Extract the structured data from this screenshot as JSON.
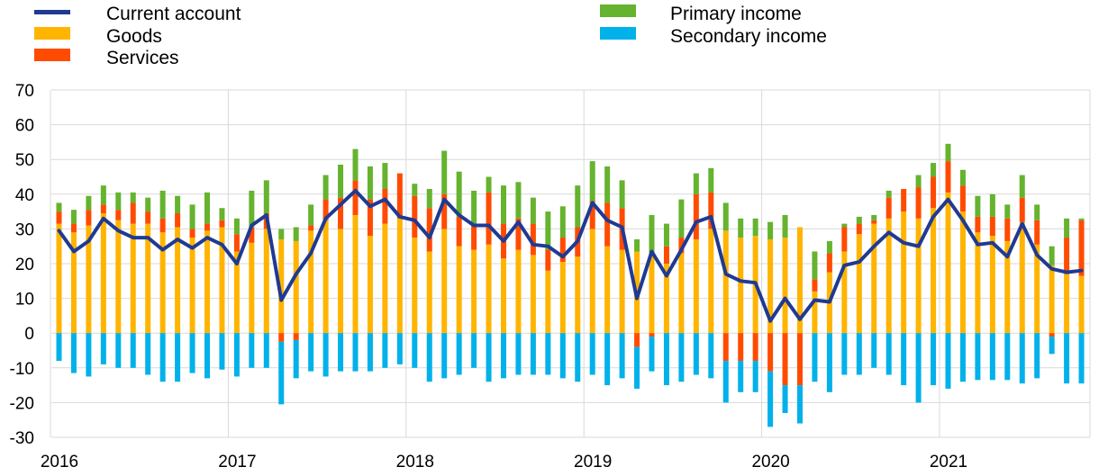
{
  "chart_data": {
    "type": "bar",
    "stacked": true,
    "title": "",
    "xlabel": "",
    "ylabel": "",
    "ylim": [
      -30,
      70
    ],
    "yticks": [
      -30,
      -20,
      -10,
      0,
      10,
      20,
      30,
      40,
      50,
      60,
      70
    ],
    "xticks": [
      "2016",
      "2017",
      "2018",
      "2019",
      "2020",
      "2021"
    ],
    "grid": "vertical at year starts, horizontal at y ticks",
    "legend_position": "top",
    "colors": {
      "Current account": "#1f3a93",
      "Goods": "#ffb400",
      "Services": "#ff4b00",
      "Primary income": "#65b32e",
      "Secondary income": "#00b1ea"
    },
    "legend": [
      {
        "name": "Current account",
        "kind": "line"
      },
      {
        "name": "Goods",
        "kind": "bar"
      },
      {
        "name": "Services",
        "kind": "bar"
      },
      {
        "name": "Primary income",
        "kind": "bar"
      },
      {
        "name": "Secondary income",
        "kind": "bar"
      }
    ],
    "categories": [
      "2016-01",
      "2016-02",
      "2016-03",
      "2016-04",
      "2016-05",
      "2016-06",
      "2016-07",
      "2016-08",
      "2016-09",
      "2016-10",
      "2016-11",
      "2016-12",
      "2017-01",
      "2017-02",
      "2017-03",
      "2017-04",
      "2017-05",
      "2017-06",
      "2017-07",
      "2017-08",
      "2017-09",
      "2017-10",
      "2017-11",
      "2017-12",
      "2018-01",
      "2018-02",
      "2018-03",
      "2018-04",
      "2018-05",
      "2018-06",
      "2018-07",
      "2018-08",
      "2018-09",
      "2018-10",
      "2018-11",
      "2018-12",
      "2019-01",
      "2019-02",
      "2019-03",
      "2019-04",
      "2019-05",
      "2019-06",
      "2019-07",
      "2019-08",
      "2019-09",
      "2019-10",
      "2019-11",
      "2019-12",
      "2020-01",
      "2020-02",
      "2020-03",
      "2020-04",
      "2020-05",
      "2020-06",
      "2020-07",
      "2020-08",
      "2020-09",
      "2020-10",
      "2020-11",
      "2020-12",
      "2021-01",
      "2021-02",
      "2021-03",
      "2021-04",
      "2021-05",
      "2021-06",
      "2021-07",
      "2021-08",
      "2021-09",
      "2021-10"
    ],
    "series": [
      {
        "name": "Goods",
        "type": "bar",
        "values": [
          31.5,
          29.0,
          31.0,
          34.5,
          32.5,
          31.5,
          31.5,
          29.0,
          30.5,
          27.5,
          29.5,
          30.5,
          23.5,
          26.0,
          30.0,
          27.0,
          26.5,
          29.5,
          32.5,
          30.0,
          34.0,
          28.0,
          31.5,
          33.0,
          27.5,
          23.5,
          30.0,
          25.0,
          24.0,
          25.5,
          21.5,
          24.0,
          22.5,
          18.0,
          20.5,
          22.0,
          30.0,
          25.0,
          24.0,
          23.5,
          22.5,
          20.0,
          23.0,
          27.0,
          30.0,
          29.5,
          27.5,
          28.0,
          27.0,
          27.5,
          30.5,
          12.0,
          17.5,
          23.5,
          28.5,
          31.5,
          33.0,
          35.0,
          33.0,
          36.0,
          40.5,
          35.0,
          29.0,
          28.0,
          26.5,
          32.0,
          25.5,
          19.5,
          17.0,
          16.5
        ]
      },
      {
        "name": "Services",
        "type": "bar",
        "values": [
          3.5,
          2.5,
          4.5,
          2.5,
          3.0,
          6.0,
          3.5,
          4.0,
          4.0,
          2.5,
          2.0,
          2.0,
          5.0,
          4.5,
          4.5,
          -2.5,
          -2.0,
          1.5,
          6.0,
          9.0,
          10.0,
          10.5,
          10.0,
          13.0,
          12.0,
          12.5,
          10.0,
          8.5,
          7.0,
          15.0,
          10.0,
          9.0,
          9.0,
          6.0,
          7.0,
          8.5,
          8.0,
          12.5,
          12.0,
          -4.0,
          -1.0,
          5.0,
          4.5,
          13.0,
          10.5,
          -8.0,
          -8.0,
          -8.0,
          -11.0,
          -15.0,
          -15.0,
          3.5,
          5.5,
          7.0,
          3.0,
          1.0,
          6.0,
          6.5,
          9.0,
          9.0,
          9.0,
          7.5,
          4.5,
          5.5,
          6.5,
          7.0,
          7.0,
          -1.0,
          10.5,
          16.0
        ]
      },
      {
        "name": "Primary income",
        "type": "bar",
        "values": [
          2.5,
          4.0,
          4.0,
          5.5,
          5.0,
          3.0,
          4.0,
          8.0,
          5.0,
          7.0,
          9.0,
          3.5,
          4.5,
          10.5,
          9.5,
          3.0,
          4.0,
          6.0,
          7.0,
          9.5,
          9.0,
          9.5,
          7.5,
          0.0,
          3.5,
          5.5,
          12.5,
          13.0,
          10.0,
          4.5,
          11.0,
          10.5,
          7.5,
          11.0,
          9.0,
          12.0,
          11.5,
          10.5,
          8.0,
          3.5,
          11.5,
          6.5,
          11.0,
          6.0,
          7.0,
          8.0,
          5.5,
          5.0,
          5.0,
          6.5,
          0.0,
          8.0,
          3.5,
          1.0,
          2.0,
          1.5,
          2.0,
          0.0,
          3.5,
          4.0,
          5.0,
          4.5,
          6.0,
          6.5,
          4.0,
          6.5,
          4.5,
          5.5,
          5.5,
          0.5
        ]
      },
      {
        "name": "Secondary income",
        "type": "bar",
        "values": [
          -8.0,
          -11.5,
          -12.5,
          -9.0,
          -10.0,
          -10.0,
          -12.0,
          -14.0,
          -14.0,
          -11.5,
          -13.0,
          -10.5,
          -12.5,
          -10.0,
          -10.0,
          -18.0,
          -11.0,
          -11.0,
          -12.5,
          -11.0,
          -11.0,
          -11.0,
          -10.0,
          -9.0,
          -10.0,
          -14.0,
          -13.0,
          -12.0,
          -10.0,
          -14.0,
          -13.0,
          -12.0,
          -12.0,
          -12.0,
          -13.0,
          -14.0,
          -12.0,
          -15.0,
          -13.0,
          -12.0,
          -10.0,
          -15.0,
          -14.0,
          -12.0,
          -13.0,
          -12.0,
          -9.0,
          -9.0,
          -16.0,
          -8.0,
          -11.0,
          -14.0,
          -17.0,
          -12.0,
          -12.0,
          -10.0,
          -12.0,
          -15.0,
          -20.0,
          -15.0,
          -16.0,
          -14.0,
          -13.5,
          -13.5,
          -13.5,
          -14.5,
          -13.0,
          -5.0,
          -14.5,
          -14.5
        ]
      },
      {
        "name": "Current account",
        "type": "line",
        "values": [
          29.5,
          23.5,
          26.5,
          33.0,
          29.5,
          27.5,
          27.5,
          24.0,
          27.0,
          24.5,
          27.5,
          25.5,
          20.0,
          31.0,
          34.0,
          9.5,
          17.0,
          23.0,
          33.0,
          37.0,
          41.0,
          36.5,
          38.5,
          33.5,
          32.5,
          27.5,
          38.5,
          34.0,
          31.0,
          31.0,
          26.5,
          32.0,
          25.5,
          25.0,
          22.0,
          26.5,
          37.5,
          32.5,
          30.5,
          10.0,
          23.5,
          16.5,
          24.0,
          32.0,
          33.5,
          17.0,
          15.0,
          14.5,
          3.5,
          10.0,
          4.0,
          9.5,
          9.0,
          19.5,
          20.5,
          25.0,
          29.0,
          26.0,
          25.0,
          33.5,
          38.5,
          32.5,
          25.5,
          26.0,
          22.0,
          31.5,
          22.5,
          18.5,
          17.5,
          18.0
        ]
      }
    ]
  }
}
